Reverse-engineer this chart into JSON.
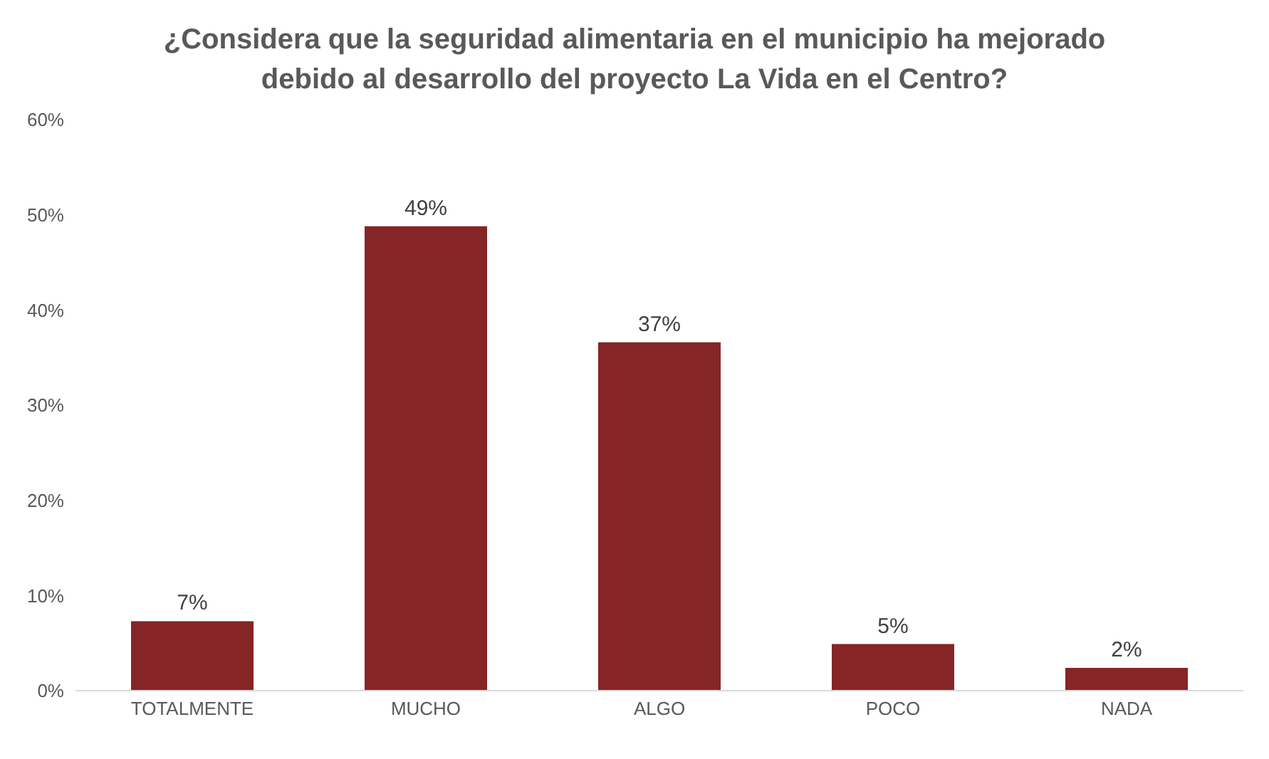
{
  "chart_data": {
    "type": "bar",
    "title": "¿Considera que la seguridad alimentaria en el municipio ha mejorado debido al desarrollo del proyecto La Vida en el Centro?",
    "categories": [
      "TOTALMENTE",
      "MUCHO",
      "ALGO",
      "POCO",
      "NADA"
    ],
    "values": [
      7.3,
      48.8,
      36.6,
      4.9,
      2.4
    ],
    "value_labels": [
      "7%",
      "49%",
      "37%",
      "5%",
      "2%"
    ],
    "color": "#862525",
    "ylim": [
      0,
      60
    ],
    "yticks": [
      {
        "value": 0,
        "label": "0%"
      },
      {
        "value": 10,
        "label": "10%"
      },
      {
        "value": 20,
        "label": "20%"
      },
      {
        "value": 30,
        "label": "30%"
      },
      {
        "value": 40,
        "label": "40%"
      },
      {
        "value": 50,
        "label": "50%"
      },
      {
        "value": 60,
        "label": "60%"
      }
    ],
    "grid": false,
    "legend": false
  }
}
